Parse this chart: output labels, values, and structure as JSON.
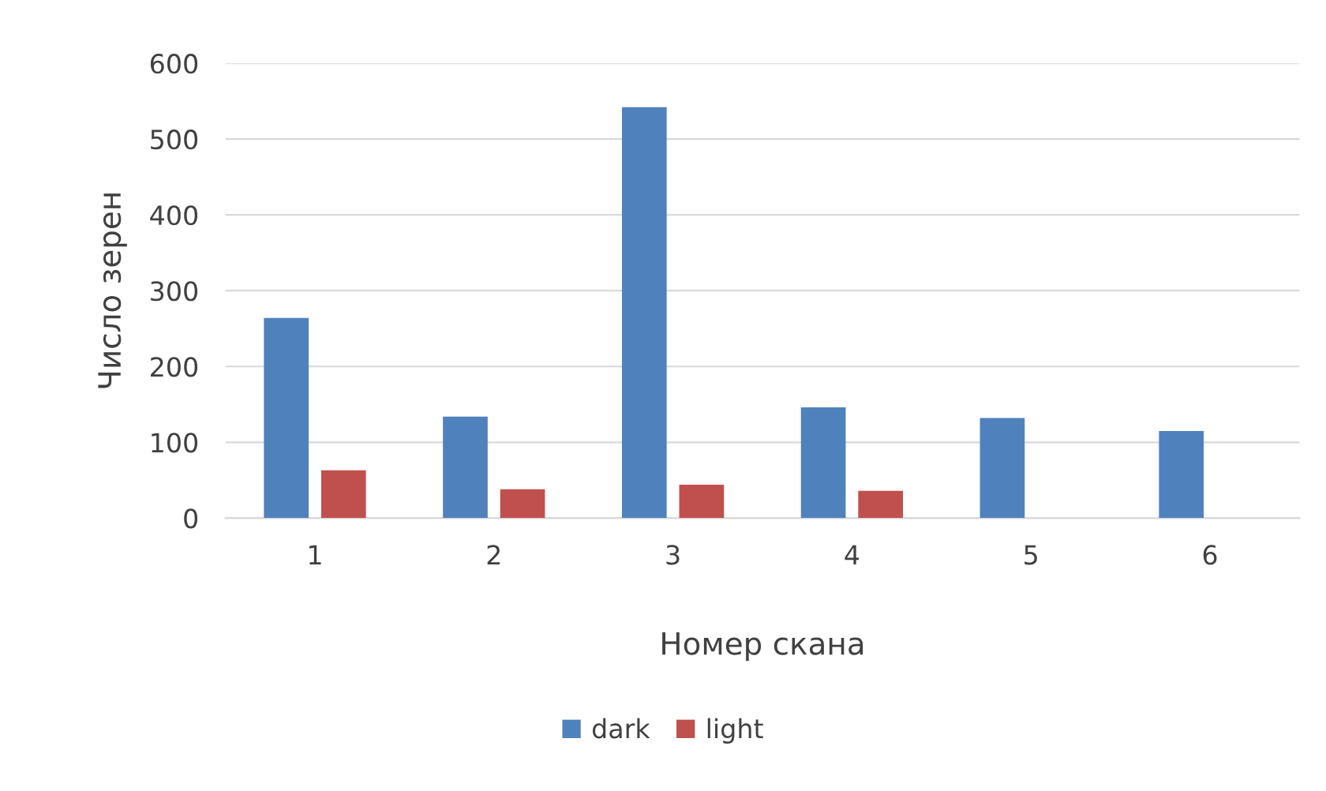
{
  "chart_data": {
    "type": "bar",
    "xlabel": "Номер скана",
    "ylabel": "Число зерен",
    "categories": [
      "1",
      "2",
      "3",
      "4",
      "5",
      "6"
    ],
    "series": [
      {
        "name": "dark",
        "color": "#4f81bd",
        "values": [
          264,
          134,
          542,
          146,
          132,
          115
        ]
      },
      {
        "name": "light",
        "color": "#c0504d",
        "values": [
          63,
          38,
          44,
          36,
          null,
          null
        ]
      }
    ],
    "ylim": [
      0,
      600
    ],
    "yticks": [
      0,
      100,
      200,
      300,
      400,
      500,
      600
    ],
    "grid": "y",
    "legend": "bottom"
  }
}
